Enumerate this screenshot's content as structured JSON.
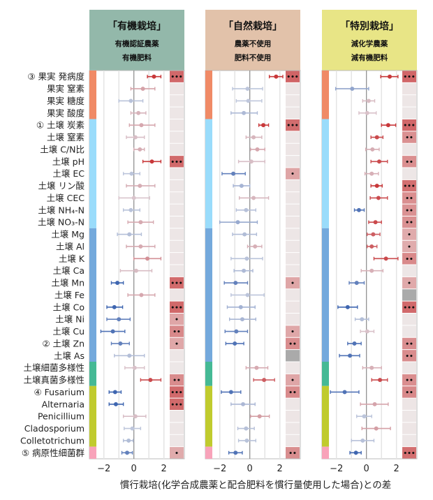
{
  "chart_data": {
    "type": "forest",
    "xlabel": "慣行栽培(化学合成農薬と配合肥料を慣行量使用した場合)との差",
    "xlim": [
      -2.6,
      2.5
    ],
    "xticks": [
      "-2",
      "0",
      "2"
    ],
    "xtick_values": [
      -2,
      0,
      2
    ],
    "grid": true,
    "row_labels": [
      "③ 果実 発病度",
      "果実 窒素",
      "果実 糖度",
      "果実 酸度",
      "① 土壌 炭素",
      "土壌 窒素",
      "土壌 C/N比",
      "土壌 pH",
      "土壌 EC",
      "土壌 リン酸",
      "土壌 CEC",
      "土壌 NH₄-N",
      "土壌 NO₃-N",
      "土壌 Mg",
      "土壌 Al",
      "土壌 K",
      "土壌 Ca",
      "土壌 Mn",
      "土壌 Fe",
      "土壌 Co",
      "土壌 Ni",
      "土壌 Cu",
      "② 土壌 Zn",
      "土壌 As",
      "土壌細菌多様性",
      "土壌真菌多様性",
      "④ Fusarium",
      "Alternaria",
      "Penicillium",
      "Cladosporium",
      "Colletotrichum",
      "⑤ 病原性細菌群"
    ],
    "groups": [
      {
        "rows": [
          0,
          3
        ],
        "color": "#f08a66"
      },
      {
        "rows": [
          4,
          12
        ],
        "color": "#9adcfb"
      },
      {
        "rows": [
          13,
          23
        ],
        "color": "#74a9dc"
      },
      {
        "rows": [
          24,
          25
        ],
        "color": "#45b995"
      },
      {
        "rows": [
          26,
          30
        ],
        "color": "#c0cb2e"
      },
      {
        "rows": [
          31,
          31
        ],
        "color": "#f8a3ba"
      }
    ],
    "colors": {
      "positive": "#c8383a",
      "negative": "#3f66b0",
      "neutral": "#dcdde6",
      "na_cell": "#aaaaaa"
    },
    "panels": [
      {
        "title": "「有機栽培」",
        "subtitle": [
          "有機認証農薬",
          "有機肥料"
        ],
        "header_color": "#93b8aa",
        "estimate": [
          1.34,
          0.6,
          -0.2,
          0.3,
          0.5,
          0.1,
          0.4,
          1.2,
          -0.15,
          0.4,
          0.0,
          -0.2,
          0.45,
          -0.3,
          0.45,
          0.9,
          0.15,
          -1.1,
          0.5,
          -1.3,
          -1.0,
          -1.4,
          -0.9,
          -0.3,
          0.05,
          1.1,
          -1.25,
          -1.2,
          0.1,
          -0.1,
          -0.35,
          -0.45
        ],
        "ci_low": [
          0.9,
          -0.2,
          -1.0,
          -0.2,
          -0.3,
          -0.5,
          0.0,
          0.6,
          -0.7,
          -0.5,
          -1.0,
          -0.7,
          -0.4,
          -1.1,
          -0.5,
          0.0,
          -0.9,
          -1.5,
          -0.4,
          -1.8,
          -1.8,
          -2.2,
          -1.5,
          -1.3,
          -0.6,
          0.45,
          -1.65,
          -1.65,
          -0.7,
          -0.65,
          -0.7,
          -0.8
        ],
        "ci_high": [
          1.8,
          1.4,
          0.6,
          0.8,
          1.4,
          0.7,
          0.7,
          1.8,
          0.4,
          1.4,
          1.05,
          0.4,
          1.3,
          0.5,
          1.4,
          1.8,
          1.2,
          -0.7,
          1.4,
          -0.75,
          -0.25,
          -0.6,
          -0.3,
          0.7,
          0.7,
          1.8,
          -0.85,
          -0.7,
          0.8,
          0.45,
          -0.05,
          -0.1
        ],
        "significance": [
          "***",
          "",
          "",
          "",
          "",
          "",
          "",
          "***",
          "",
          "",
          "",
          "",
          "",
          "",
          "",
          "",
          "",
          "***",
          "",
          "***",
          "*",
          "**",
          "*",
          "",
          "",
          "**",
          "***",
          "***",
          "",
          "",
          "",
          "*"
        ]
      },
      {
        "title": "「自然栽培」",
        "subtitle": [
          "農薬不使用",
          "肥料不使用"
        ],
        "header_color": "#e2c2aa",
        "estimate": [
          1.75,
          -0.15,
          -0.1,
          -0.4,
          0.9,
          0.25,
          0.5,
          0.1,
          -1.1,
          -0.55,
          0.25,
          -0.25,
          -0.8,
          -0.35,
          0.35,
          -0.2,
          -0.4,
          -0.95,
          -0.15,
          -0.6,
          -0.5,
          -0.9,
          -1.0,
          null,
          0.45,
          0.95,
          -1.25,
          -0.45,
          0.65,
          -0.25,
          -0.2,
          -0.95
        ],
        "ci_low": [
          1.3,
          -1.15,
          -0.9,
          -1.25,
          0.6,
          -0.25,
          0.05,
          -0.75,
          -1.85,
          -1.1,
          -0.7,
          -0.9,
          -2.0,
          -1.15,
          -0.15,
          -1.25,
          -1.05,
          -1.7,
          -1.25,
          -1.5,
          -1.35,
          -1.65,
          -1.6,
          null,
          -0.25,
          0.25,
          -1.9,
          -1.25,
          0.05,
          -0.8,
          -0.75,
          -1.4
        ],
        "ci_high": [
          2.2,
          0.85,
          0.8,
          0.5,
          1.25,
          0.8,
          1.0,
          1.0,
          -0.3,
          0.0,
          1.25,
          0.4,
          0.5,
          0.45,
          0.8,
          0.85,
          0.2,
          -0.15,
          0.95,
          0.35,
          0.4,
          -0.15,
          -0.4,
          null,
          1.2,
          1.65,
          -0.6,
          0.35,
          1.3,
          0.3,
          0.4,
          -0.5
        ],
        "significance": [
          "***",
          "",
          "",
          "",
          "***",
          "",
          "",
          "",
          "*",
          "",
          "",
          "",
          "",
          "",
          "",
          "",
          "",
          "*",
          "",
          "",
          "",
          "*",
          "**",
          null,
          "",
          "*",
          "**",
          "",
          "",
          "",
          "",
          "**"
        ]
      },
      {
        "title": "「特別栽培」",
        "subtitle": [
          "減化学農薬",
          "減有機肥料"
        ],
        "header_color": "#e8e586",
        "estimate": [
          1.55,
          -0.95,
          0.15,
          0.05,
          1.45,
          0.7,
          0.4,
          0.85,
          0.35,
          0.7,
          0.8,
          -0.5,
          0.6,
          0.45,
          0.35,
          1.3,
          0.35,
          -0.65,
          null,
          -1.25,
          -0.3,
          0.05,
          -0.8,
          -1.1,
          0.35,
          0.9,
          -1.45,
          0.55,
          -0.15,
          0.65,
          -0.25,
          -0.7
        ],
        "ci_low": [
          0.95,
          -2.05,
          -0.25,
          -0.5,
          1.0,
          0.3,
          -0.05,
          0.3,
          -0.1,
          0.3,
          0.25,
          -0.8,
          0.15,
          0.05,
          0.05,
          0.5,
          -0.35,
          -1.15,
          null,
          -1.9,
          -0.75,
          -0.4,
          -1.25,
          -1.8,
          -0.25,
          0.35,
          -2.4,
          -0.4,
          -0.65,
          -0.3,
          -1.0,
          -1.1
        ],
        "ci_high": [
          2.1,
          0.15,
          0.55,
          0.65,
          1.95,
          1.1,
          0.85,
          1.4,
          0.8,
          1.05,
          1.4,
          -0.15,
          1.0,
          0.9,
          0.7,
          2.1,
          1.1,
          -0.15,
          null,
          -0.6,
          0.15,
          0.5,
          -0.35,
          -0.45,
          1.0,
          1.4,
          -0.5,
          1.45,
          0.35,
          1.6,
          0.5,
          -0.35
        ],
        "significance": [
          "***",
          "",
          "",
          "",
          "***",
          "**",
          "",
          "**",
          "",
          "***",
          "**",
          "**",
          "**",
          "*",
          "*",
          "**",
          "",
          "*",
          null,
          "***",
          "",
          "",
          "**",
          "**",
          "",
          "**",
          "**",
          "",
          "",
          "",
          "",
          "***"
        ]
      }
    ]
  }
}
